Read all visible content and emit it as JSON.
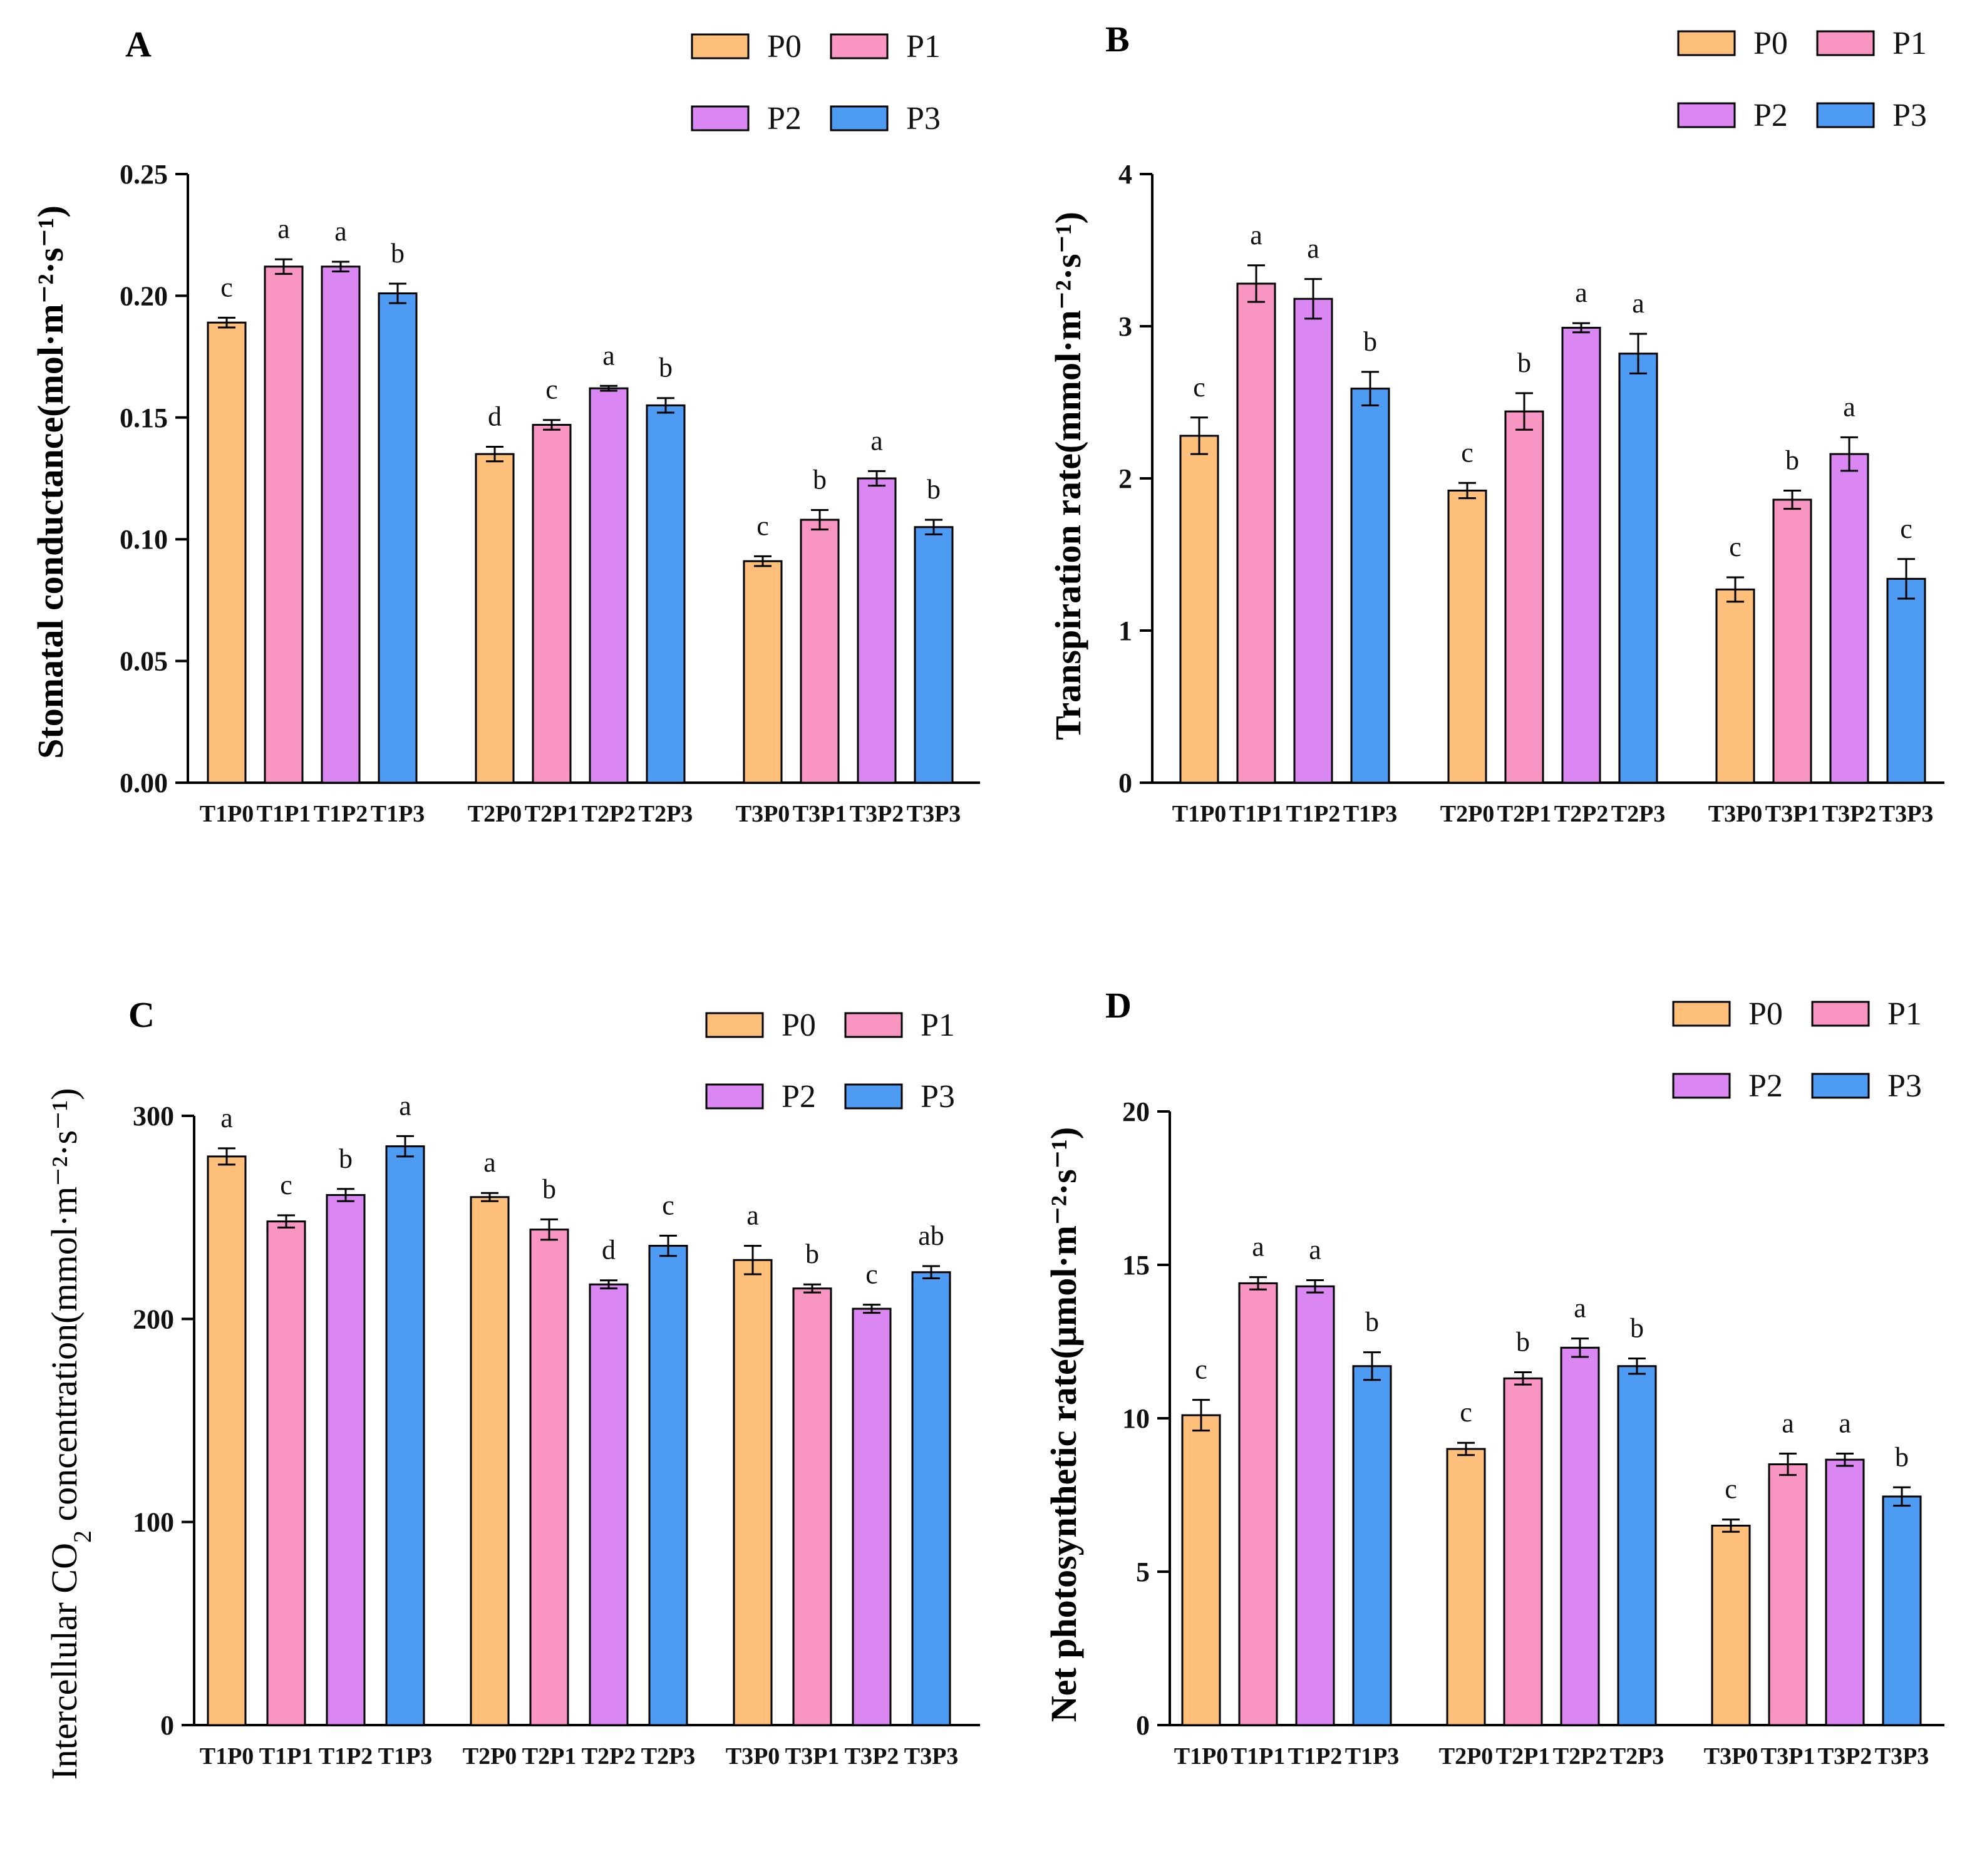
{
  "colors": {
    "P0": "#FDBF7A",
    "P1": "#F895C3",
    "P2": "#DA87F3",
    "P3": "#4E9BF3"
  },
  "chart_data": [
    {
      "panel": "A",
      "type": "bar",
      "ylabel": "Stomatal conductance(mol·m⁻²·s⁻¹)",
      "ylim": [
        0,
        0.25
      ],
      "yticks": [
        "0.00",
        "0.05",
        "0.10",
        "0.15",
        "0.20",
        "0.25"
      ],
      "ytick_values": [
        0,
        0.05,
        0.1,
        0.15,
        0.2,
        0.25
      ],
      "legend": [
        "P0",
        "P1",
        "P2",
        "P3"
      ],
      "categories": [
        "T1P0",
        "T1P1",
        "T1P2",
        "T1P3",
        "T2P0",
        "T2P1",
        "T2P2",
        "T2P3",
        "T3P0",
        "T3P1",
        "T3P2",
        "T3P3"
      ],
      "values": [
        0.189,
        0.212,
        0.212,
        0.201,
        0.135,
        0.147,
        0.162,
        0.155,
        0.091,
        0.108,
        0.125,
        0.105
      ],
      "errors": [
        0.002,
        0.003,
        0.002,
        0.004,
        0.003,
        0.002,
        0.001,
        0.003,
        0.002,
        0.004,
        0.003,
        0.003
      ],
      "letters": [
        "c",
        "a",
        "a",
        "b",
        "d",
        "c",
        "a",
        "b",
        "c",
        "b",
        "a",
        "b"
      ]
    },
    {
      "panel": "B",
      "type": "bar",
      "ylabel": "Transpiration rate(mmol·m⁻²·s⁻¹)",
      "ylim": [
        0,
        4
      ],
      "yticks": [
        "0",
        "1",
        "2",
        "3",
        "4"
      ],
      "ytick_values": [
        0,
        1,
        2,
        3,
        4
      ],
      "legend": [
        "P0",
        "P1",
        "P2",
        "P3"
      ],
      "categories": [
        "T1P0",
        "T1P1",
        "T1P2",
        "T1P3",
        "T2P0",
        "T2P1",
        "T2P2",
        "T2P3",
        "T3P0",
        "T3P1",
        "T3P2",
        "T3P3"
      ],
      "values": [
        2.28,
        3.28,
        3.18,
        2.59,
        1.92,
        2.44,
        2.99,
        2.82,
        1.27,
        1.86,
        2.16,
        1.34
      ],
      "errors": [
        0.12,
        0.12,
        0.13,
        0.11,
        0.05,
        0.12,
        0.03,
        0.13,
        0.08,
        0.06,
        0.11,
        0.13
      ],
      "letters": [
        "c",
        "a",
        "a",
        "b",
        "c",
        "b",
        "a",
        "a",
        "c",
        "b",
        "a",
        "c"
      ]
    },
    {
      "panel": "C",
      "type": "bar",
      "ylabel_prefix": "Intercellular CO",
      "ylabel_sub": "2",
      "ylabel_suffix": " concentration(mmol·m⁻²·s⁻¹)",
      "ylim": [
        0,
        300
      ],
      "yticks": [
        "0",
        "100",
        "200",
        "300"
      ],
      "ytick_values": [
        0,
        100,
        200,
        300
      ],
      "legend": [
        "P0",
        "P1",
        "P2",
        "P3"
      ],
      "categories": [
        "T1P0",
        "T1P1",
        "T1P2",
        "T1P3",
        "T2P0",
        "T2P1",
        "T2P2",
        "T2P3",
        "T3P0",
        "T3P1",
        "T3P2",
        "T3P3"
      ],
      "values": [
        280,
        248,
        261,
        285,
        260,
        244,
        217,
        236,
        229,
        215,
        205,
        223
      ],
      "errors": [
        4,
        3,
        3,
        5,
        2,
        5,
        2,
        5,
        7,
        2,
        2,
        3
      ],
      "letters": [
        "a",
        "c",
        "b",
        "a",
        "a",
        "b",
        "d",
        "c",
        "a",
        "b",
        "c",
        "ab"
      ]
    },
    {
      "panel": "D",
      "type": "bar",
      "ylabel": "Net photosynthetic rate(μmol·m⁻²·s⁻¹)",
      "ylim": [
        0,
        20
      ],
      "yticks": [
        "0",
        "5",
        "10",
        "15",
        "20"
      ],
      "ytick_values": [
        0,
        5,
        10,
        15,
        20
      ],
      "legend": [
        "P0",
        "P1",
        "P2",
        "P3"
      ],
      "categories": [
        "T1P0",
        "T1P1",
        "T1P2",
        "T1P3",
        "T2P0",
        "T2P1",
        "T2P2",
        "T2P3",
        "T3P0",
        "T3P1",
        "T3P2",
        "T3P3"
      ],
      "values": [
        10.1,
        14.4,
        14.3,
        11.7,
        9.0,
        11.3,
        12.3,
        11.7,
        6.5,
        8.5,
        8.65,
        7.45
      ],
      "errors": [
        0.5,
        0.2,
        0.2,
        0.45,
        0.2,
        0.2,
        0.3,
        0.25,
        0.2,
        0.35,
        0.2,
        0.3
      ],
      "letters": [
        "c",
        "a",
        "a",
        "b",
        "c",
        "b",
        "a",
        "b",
        "c",
        "a",
        "a",
        "b"
      ]
    }
  ]
}
